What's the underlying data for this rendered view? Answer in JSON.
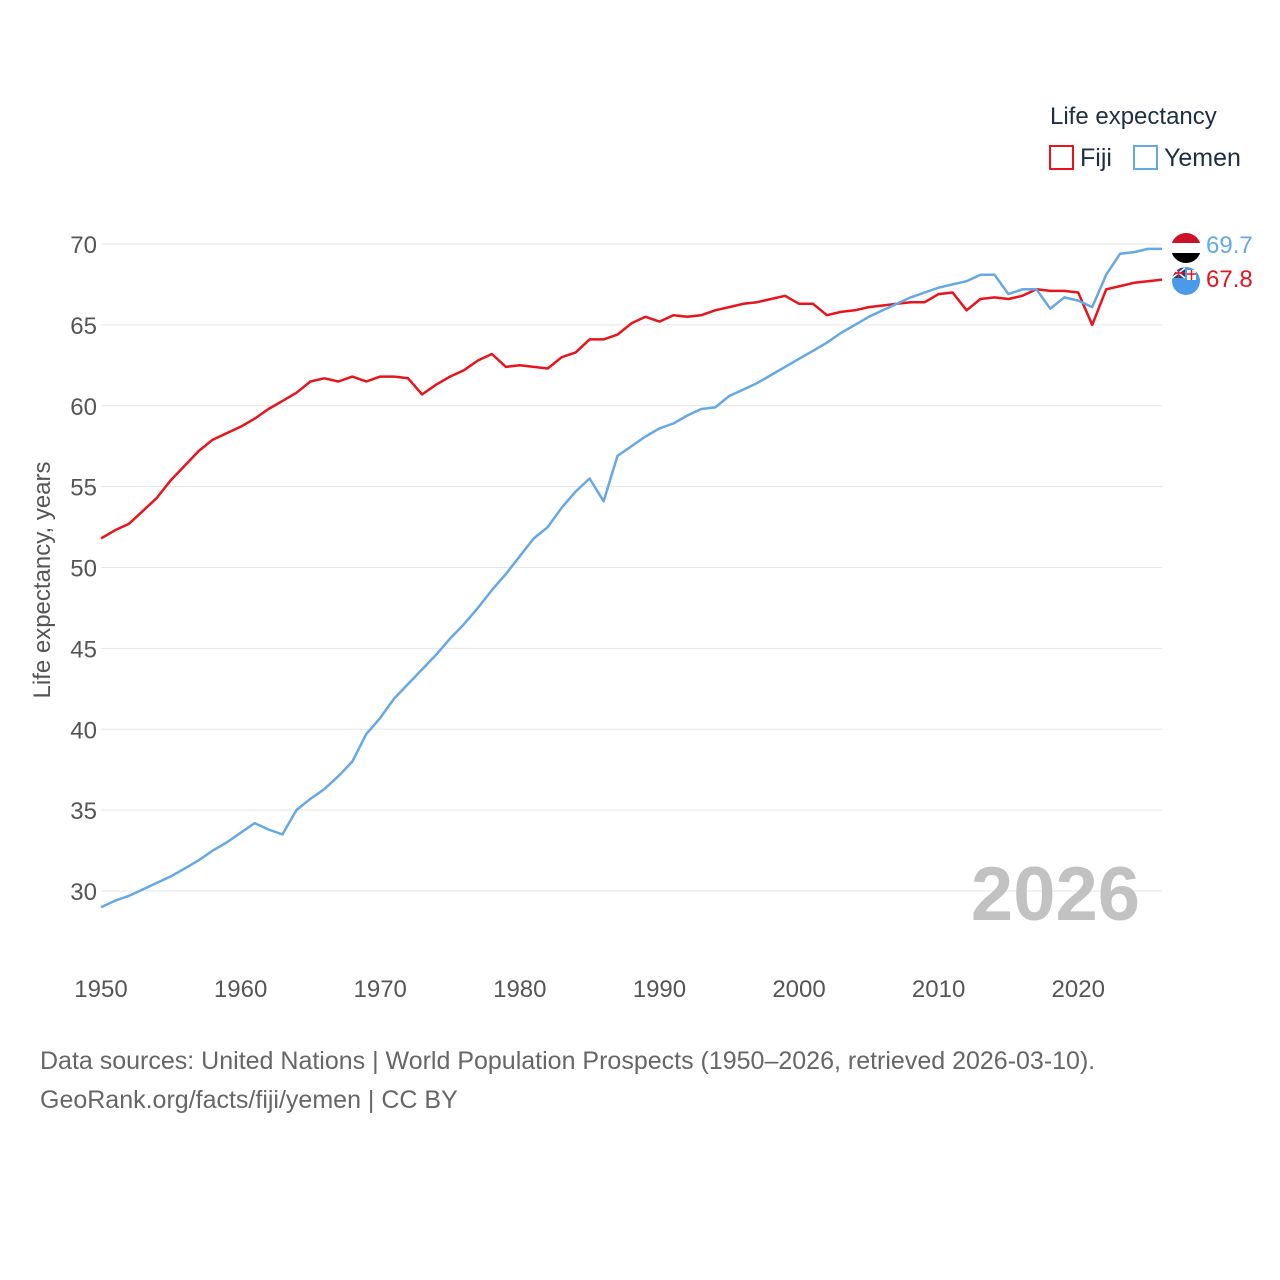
{
  "chart_data": {
    "type": "line",
    "title": "",
    "xlabel": "",
    "ylabel": "Life expectancy, years",
    "xlim": [
      1950,
      2026
    ],
    "ylim": [
      27,
      72
    ],
    "yticks": [
      30,
      35,
      40,
      45,
      50,
      55,
      60,
      65,
      70
    ],
    "xticks": [
      1950,
      1960,
      1970,
      1980,
      1990,
      2000,
      2010,
      2020
    ],
    "legend": {
      "title": "Life expectancy",
      "placement": "top-right"
    },
    "year_label": "2026",
    "series": [
      {
        "name": "Fiji",
        "color": "#e8131b",
        "end_label": "67.8",
        "x": [
          1950,
          1951,
          1952,
          1953,
          1954,
          1955,
          1956,
          1957,
          1958,
          1959,
          1960,
          1961,
          1962,
          1963,
          1964,
          1965,
          1966,
          1967,
          1968,
          1969,
          1970,
          1971,
          1972,
          1973,
          1974,
          1975,
          1976,
          1977,
          1978,
          1979,
          1980,
          1981,
          1982,
          1983,
          1984,
          1985,
          1986,
          1987,
          1988,
          1989,
          1990,
          1991,
          1992,
          1993,
          1994,
          1995,
          1996,
          1997,
          1998,
          1999,
          2000,
          2001,
          2002,
          2003,
          2004,
          2005,
          2006,
          2007,
          2008,
          2009,
          2010,
          2011,
          2012,
          2013,
          2014,
          2015,
          2016,
          2017,
          2018,
          2019,
          2020,
          2021,
          2022,
          2023,
          2024,
          2025,
          2026
        ],
        "y": [
          51.8,
          52.3,
          52.7,
          53.5,
          54.3,
          55.4,
          56.3,
          57.2,
          57.9,
          58.3,
          58.7,
          59.2,
          59.8,
          60.3,
          60.8,
          61.5,
          61.7,
          61.5,
          61.8,
          61.5,
          61.8,
          61.8,
          61.7,
          60.7,
          61.3,
          61.8,
          62.2,
          62.8,
          63.2,
          62.4,
          62.5,
          62.4,
          62.3,
          63.0,
          63.3,
          64.1,
          64.1,
          64.4,
          65.1,
          65.5,
          65.2,
          65.6,
          65.5,
          65.6,
          65.9,
          66.1,
          66.3,
          66.4,
          66.6,
          66.8,
          66.3,
          66.3,
          65.6,
          65.8,
          65.9,
          66.1,
          66.2,
          66.3,
          66.4,
          66.4,
          66.9,
          67.0,
          65.9,
          66.6,
          66.7,
          66.6,
          66.8,
          67.2,
          67.1,
          67.1,
          67.0,
          65.0,
          67.2,
          67.4,
          67.6,
          67.7,
          67.8
        ]
      },
      {
        "name": "Yemen",
        "color": "#64a8e8",
        "end_label": "69.7",
        "x": [
          1950,
          1951,
          1952,
          1953,
          1954,
          1955,
          1956,
          1957,
          1958,
          1959,
          1960,
          1961,
          1962,
          1963,
          1964,
          1965,
          1966,
          1967,
          1968,
          1969,
          1970,
          1971,
          1972,
          1973,
          1974,
          1975,
          1976,
          1977,
          1978,
          1979,
          1980,
          1981,
          1982,
          1983,
          1984,
          1985,
          1986,
          1987,
          1988,
          1989,
          1990,
          1991,
          1992,
          1993,
          1994,
          1995,
          1996,
          1997,
          1998,
          1999,
          2000,
          2001,
          2002,
          2003,
          2004,
          2005,
          2006,
          2007,
          2008,
          2009,
          2010,
          2011,
          2012,
          2013,
          2014,
          2015,
          2016,
          2017,
          2018,
          2019,
          2020,
          2021,
          2022,
          2023,
          2024,
          2025,
          2026
        ],
        "y": [
          29.0,
          29.4,
          29.7,
          30.1,
          30.5,
          30.9,
          31.4,
          31.9,
          32.5,
          33.0,
          33.6,
          34.2,
          33.8,
          33.5,
          35.0,
          35.7,
          36.3,
          37.1,
          38.0,
          39.7,
          40.7,
          41.9,
          42.8,
          43.7,
          44.6,
          45.6,
          46.5,
          47.5,
          48.6,
          49.6,
          50.7,
          51.8,
          52.5,
          53.7,
          54.7,
          55.5,
          54.1,
          56.9,
          57.5,
          58.1,
          58.6,
          58.9,
          59.4,
          59.8,
          59.9,
          60.6,
          61.0,
          61.4,
          61.9,
          62.4,
          62.9,
          63.4,
          63.9,
          64.5,
          65.0,
          65.5,
          65.9,
          66.3,
          66.7,
          67.0,
          67.3,
          67.5,
          67.7,
          68.1,
          68.1,
          66.9,
          67.2,
          67.2,
          66.0,
          66.7,
          66.5,
          66.1,
          68.1,
          69.4,
          69.5,
          69.7,
          69.7
        ]
      }
    ]
  },
  "footer": {
    "line1": "Data sources: United Nations | World Population Prospects (1950–2026, retrieved 2026-03-10).",
    "line2": "GeoRank.org/facts/fiji/yemen | CC BY"
  }
}
